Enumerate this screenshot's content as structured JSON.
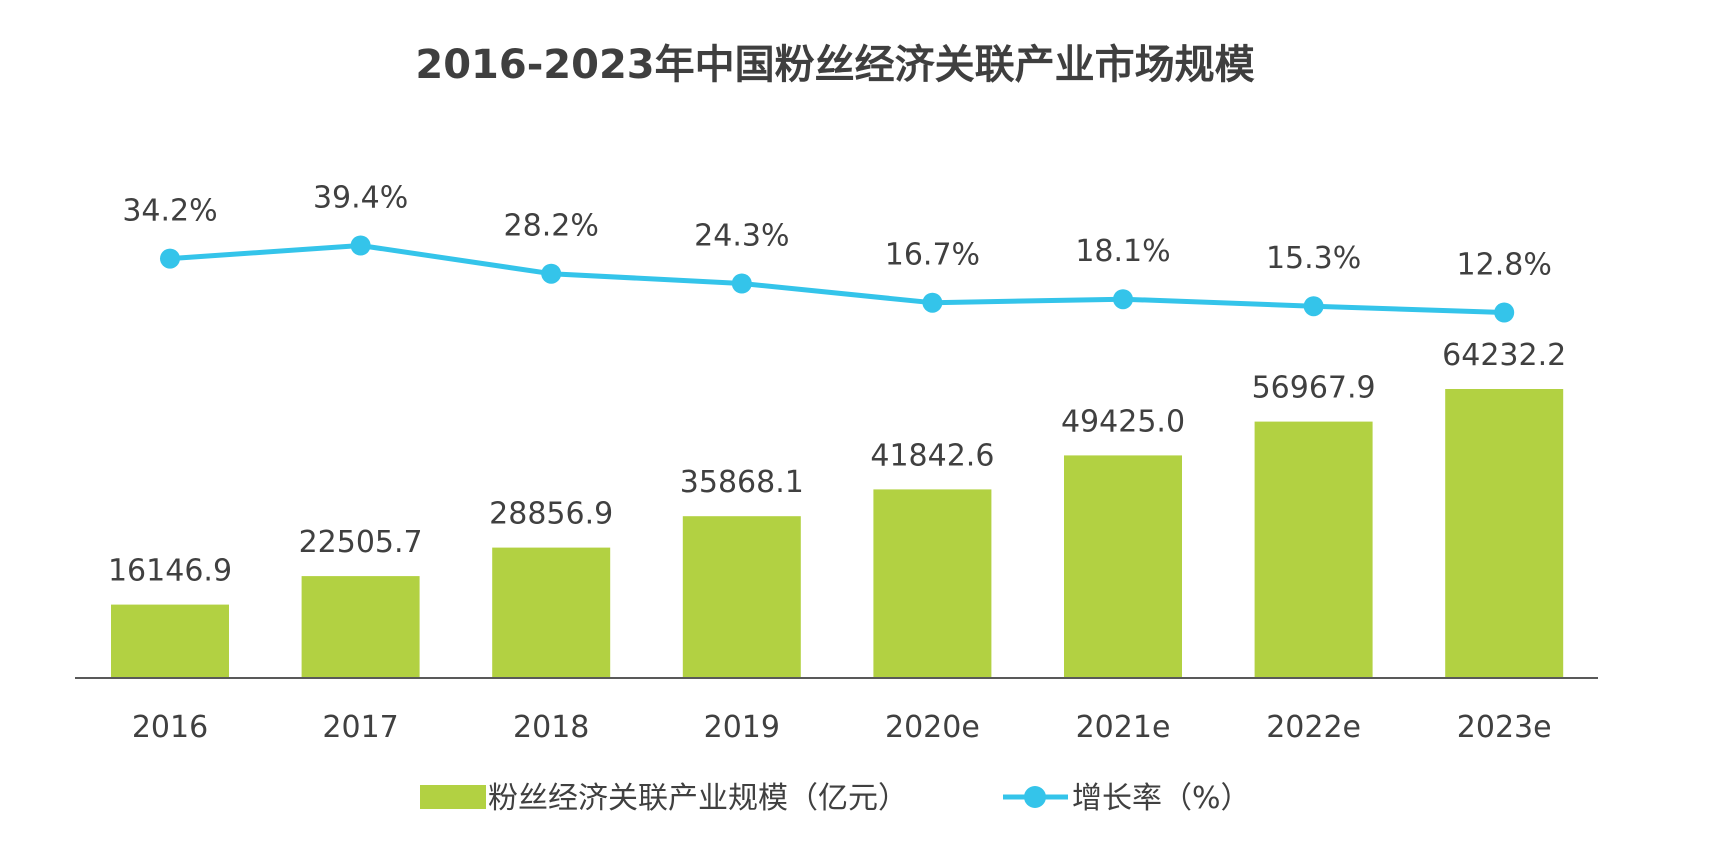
{
  "chart_data": {
    "type": "bar+line",
    "title": "2016-2023年中国粉丝经济关联产业市场规模",
    "categories": [
      "2016",
      "2017",
      "2018",
      "2019",
      "2020e",
      "2021e",
      "2022e",
      "2023e"
    ],
    "series": [
      {
        "name": "粉丝经济关联产业规模（亿元）",
        "type": "bar",
        "color": "#b2d142",
        "values": [
          16146.9,
          22505.7,
          28856.9,
          35868.1,
          41842.6,
          49425.0,
          56967.9,
          64232.2
        ],
        "labels": [
          "16146.9",
          "22505.7",
          "28856.9",
          "35868.1",
          "41842.6",
          "49425.0",
          "56967.9",
          "64232.2"
        ]
      },
      {
        "name": "增长率（%）",
        "type": "line",
        "color": "#34c4ea",
        "values": [
          34.2,
          39.4,
          28.2,
          24.3,
          16.7,
          18.1,
          15.3,
          12.8
        ],
        "labels": [
          "34.2%",
          "39.4%",
          "28.2%",
          "24.3%",
          "16.7%",
          "18.1%",
          "15.3%",
          "12.8%"
        ]
      }
    ],
    "xlabel": "",
    "ylabel": "",
    "ylim_bar": [
      0,
      75000
    ],
    "ylim_line": [
      -160,
      42
    ],
    "grid": false,
    "legend_position": "bottom-center",
    "axis_color": "#595959"
  }
}
